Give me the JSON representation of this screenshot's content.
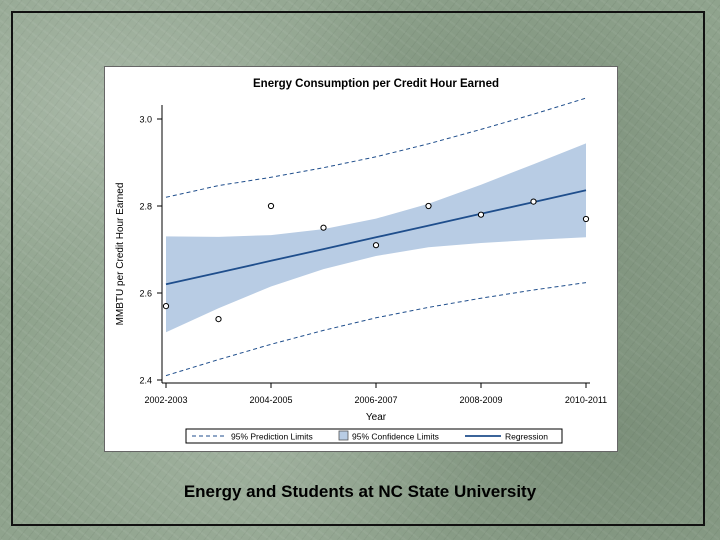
{
  "caption": "Energy and Students at NC State University",
  "colors": {
    "band": "#b8cce4",
    "regression": "#1f4e8c",
    "prediction": "#1f4e8c",
    "points": "#000000"
  },
  "chart_data": {
    "type": "scatter",
    "title": "Energy Consumption per Credit Hour Earned",
    "xlabel": "Year",
    "ylabel": "MMBTU per Credit Hour Earned",
    "categories": [
      "2002-2003",
      "2003-2004",
      "2004-2005",
      "2005-2006",
      "2006-2007",
      "2007-2008",
      "2008-2009",
      "2009-2010",
      "2010-2011"
    ],
    "x_tick_labels": [
      "2002-2003",
      "2004-2005",
      "2006-2007",
      "2008-2009",
      "2010-2011"
    ],
    "y_tick_labels": [
      "2.4",
      "2.6",
      "2.8",
      "3.0"
    ],
    "ylim": [
      2.4,
      3.0
    ],
    "grid": false,
    "legend_position": "bottom",
    "series": [
      {
        "name": "",
        "values": [
          2.57,
          2.54,
          2.8,
          2.75,
          2.71,
          2.8,
          2.78,
          2.81,
          2.77
        ]
      },
      {
        "name": "Regression",
        "values": [
          2.62,
          2.647,
          2.674,
          2.701,
          2.728,
          2.755,
          2.782,
          2.809,
          2.836
        ]
      },
      {
        "name": "95% Confidence Limits",
        "lower": [
          2.51,
          2.565,
          2.615,
          2.655,
          2.685,
          2.705,
          2.715,
          2.722,
          2.728
        ],
        "upper": [
          2.73,
          2.729,
          2.733,
          2.747,
          2.771,
          2.805,
          2.849,
          2.896,
          2.944
        ]
      },
      {
        "name": "95% Prediction Limits",
        "lower": [
          2.41,
          2.447,
          2.482,
          2.514,
          2.543,
          2.567,
          2.588,
          2.607,
          2.624
        ],
        "upper": [
          2.82,
          2.847,
          2.866,
          2.888,
          2.913,
          2.943,
          2.976,
          3.011,
          3.048
        ]
      }
    ]
  }
}
